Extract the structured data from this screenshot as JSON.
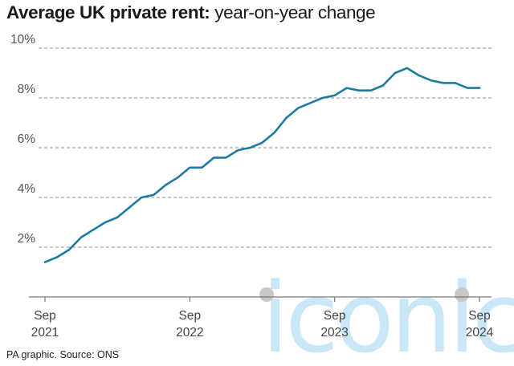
{
  "header": {
    "title_bold": "Average UK private rent:",
    "title_light": "year-on-year change"
  },
  "footer": {
    "source": "PA graphic. Source: ONS"
  },
  "watermark": {
    "text": "iconic",
    "color": "#c9e7f6"
  },
  "colors": {
    "line": "#1f7aa3",
    "grid": "#8f8f8f",
    "axis": "#777777"
  },
  "chart_data": {
    "type": "line",
    "title": "Average UK private rent: year-on-year change",
    "xlabel": "",
    "ylabel": "",
    "ylim": [
      0,
      10
    ],
    "yticks": [
      {
        "value": 2,
        "label": "2%"
      },
      {
        "value": 4,
        "label": "4%"
      },
      {
        "value": 6,
        "label": "6%"
      },
      {
        "value": 8,
        "label": "8%"
      },
      {
        "value": 10,
        "label": "10%"
      }
    ],
    "xticks": [
      {
        "value": "2021-09",
        "line1": "Sep",
        "line2": "2021"
      },
      {
        "value": "2022-09",
        "line1": "Sep",
        "line2": "2022"
      },
      {
        "value": "2023-09",
        "line1": "Sep",
        "line2": "2023"
      },
      {
        "value": "2024-09",
        "line1": "Sep",
        "line2": "2024"
      }
    ],
    "grid": "horizontal dashed",
    "series": [
      {
        "x": [
          "2021-09",
          "2021-10",
          "2021-11",
          "2021-12",
          "2022-01",
          "2022-02",
          "2022-03",
          "2022-04",
          "2022-05",
          "2022-06",
          "2022-07",
          "2022-08",
          "2022-09",
          "2022-10",
          "2022-11",
          "2022-12",
          "2023-01",
          "2023-02",
          "2023-03",
          "2023-04",
          "2023-05",
          "2023-06",
          "2023-07",
          "2023-08",
          "2023-09",
          "2023-10",
          "2023-11",
          "2023-12",
          "2024-01",
          "2024-02",
          "2024-03",
          "2024-04",
          "2024-05",
          "2024-06",
          "2024-07",
          "2024-08",
          "2024-09"
        ],
        "values": [
          1.4,
          1.6,
          1.9,
          2.4,
          2.7,
          3.0,
          3.2,
          3.6,
          4.0,
          4.1,
          4.5,
          4.8,
          5.2,
          5.2,
          5.6,
          5.6,
          5.9,
          6.0,
          6.2,
          6.6,
          7.2,
          7.6,
          7.8,
          8.0,
          8.1,
          8.4,
          8.3,
          8.3,
          8.5,
          9.0,
          9.2,
          8.9,
          8.7,
          8.6,
          8.6,
          8.4,
          8.4
        ]
      }
    ]
  }
}
